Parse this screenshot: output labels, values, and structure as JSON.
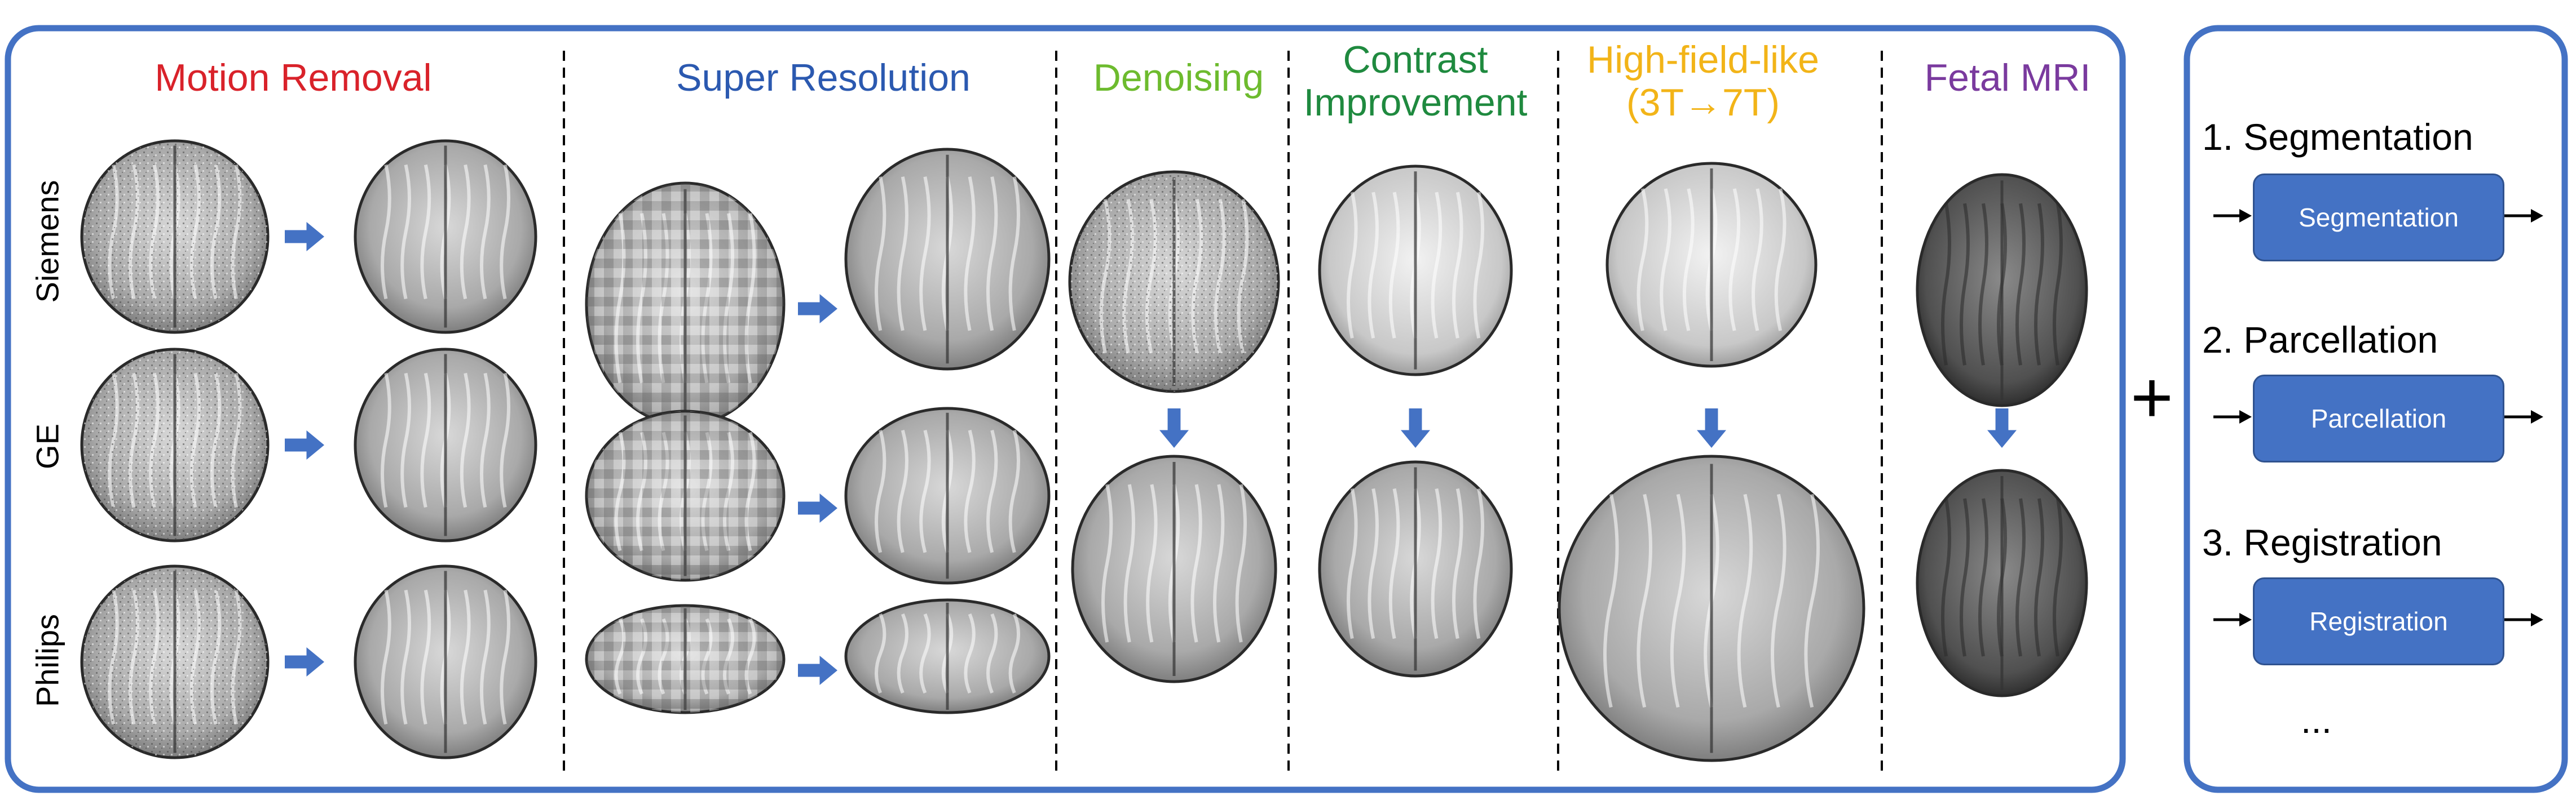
{
  "sections": [
    {
      "id": "motion",
      "title": "Motion Removal",
      "color": "#D9222A"
    },
    {
      "id": "superres",
      "title": "Super Resolution",
      "color": "#2B59B0"
    },
    {
      "id": "denoise",
      "title": "Denoising",
      "color": "#6DBB2E"
    },
    {
      "id": "contrast",
      "title": "Contrast Improvement",
      "color": "#1F8A3F"
    },
    {
      "id": "highfield",
      "title": "High-field-like (3T→7T)",
      "color": "#F2B418"
    },
    {
      "id": "fetal",
      "title": "Fetal MRI",
      "color": "#7A3A9E"
    }
  ],
  "vendors": [
    "Siemens",
    "GE",
    "Philips"
  ],
  "plus_sign": "+",
  "tasks": [
    {
      "title": "1. Segmentation",
      "box": "Segmentation"
    },
    {
      "title": "2. Parcellation",
      "box": "Parcellation"
    },
    {
      "title": "3. Registration",
      "box": "Registration"
    }
  ],
  "ellipsis": "...",
  "colors": {
    "frame": "#4472C4",
    "arrow": "#4472C4",
    "divider": "#000000"
  }
}
